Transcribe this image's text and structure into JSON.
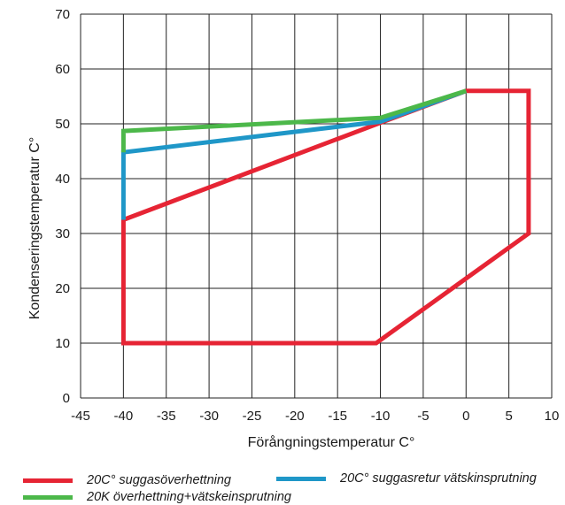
{
  "chart_data": {
    "type": "line",
    "title": "",
    "xlabel": "Förångningstemperatur C°",
    "ylabel": "Kondenseringstemperatur C°",
    "xlim": [
      -45,
      10
    ],
    "ylim": [
      0,
      70
    ],
    "x_ticks": [
      -45,
      -40,
      -35,
      -30,
      -25,
      -20,
      -15,
      -10,
      -5,
      0,
      5,
      10
    ],
    "y_ticks": [
      0,
      10,
      20,
      30,
      40,
      50,
      60,
      70
    ],
    "grid": true,
    "legend_position": "bottom",
    "series": [
      {
        "name": "20C° suggasöverhettning",
        "color": "#e62434",
        "points": [
          [
            -40,
            32.5
          ],
          [
            -40,
            10
          ],
          [
            -10.5,
            10
          ],
          [
            7.3,
            30
          ],
          [
            7.3,
            56
          ],
          [
            0,
            56
          ],
          [
            -10,
            50.2
          ],
          [
            -40,
            32.5
          ]
        ]
      },
      {
        "name": "20C° suggasretur vätskinsprutning",
        "color": "#1f97c8",
        "points": [
          [
            -40,
            32.5
          ],
          [
            -40,
            44.8
          ],
          [
            -10,
            50.4
          ],
          [
            0,
            56
          ]
        ]
      },
      {
        "name": "20K överhettning+vätskeinsprutning",
        "color": "#4cb84a",
        "points": [
          [
            -40,
            44.8
          ],
          [
            -40,
            48.7
          ],
          [
            -10,
            51.1
          ],
          [
            0,
            56
          ]
        ]
      }
    ]
  }
}
